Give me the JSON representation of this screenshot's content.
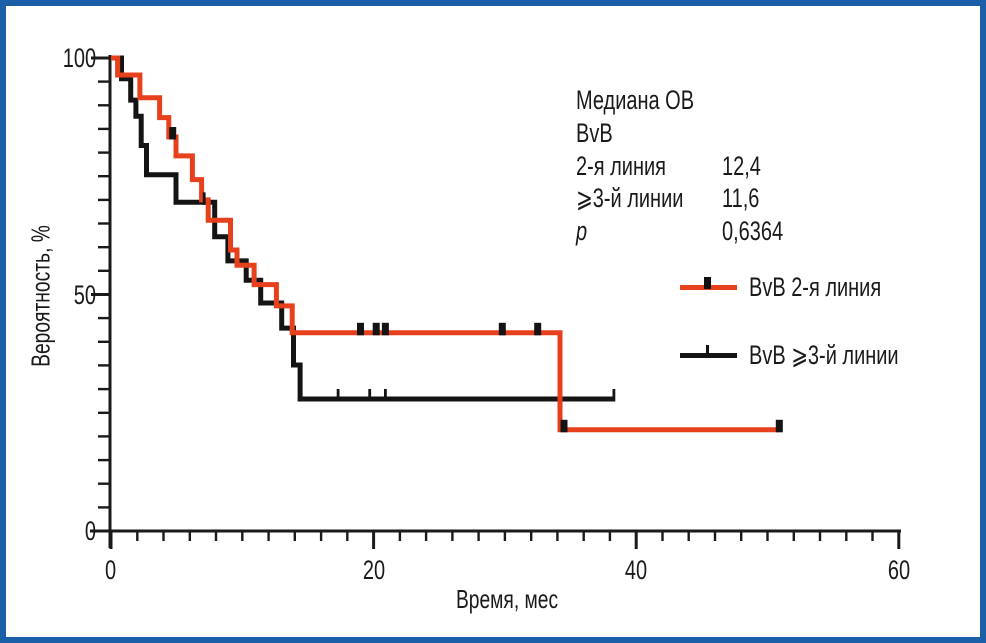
{
  "colors": {
    "frame_blue": "#1b5fa8",
    "curve_red": "#e7401d",
    "curve_black": "#141414",
    "text": "#1a1a1a",
    "background": "#ffffff"
  },
  "stats": {
    "rows": [
      {
        "label": "Медиана ОВ",
        "value": ""
      },
      {
        "label": "BvB",
        "value": ""
      },
      {
        "label": "2-я линия",
        "value": "12,4"
      },
      {
        "label": "⩾3-й линии",
        "value": "11,6"
      },
      {
        "label": "p",
        "value": "0,6364"
      }
    ]
  },
  "legend": {
    "items": [
      {
        "label": "BvB 2-я линия",
        "color": "#e7401d",
        "censor_style": "thick"
      },
      {
        "label": "BvB ⩾3-й линии",
        "color": "#141414",
        "censor_style": "thin"
      }
    ]
  },
  "chart_data": {
    "type": "line",
    "subtype": "kaplan-meier-step",
    "title": "",
    "xlabel": "Время, мес",
    "ylabel": "Вероятность, %",
    "xlim": [
      0,
      60
    ],
    "ylim": [
      0,
      100
    ],
    "grid": false,
    "legend_position": "right-middle",
    "x_axis": {
      "ticks": [
        0,
        20,
        40,
        60
      ],
      "tick_labels": [
        "0",
        "20",
        "40",
        "60"
      ],
      "minor_step": 2
    },
    "y_axis": {
      "ticks": [
        0,
        50,
        100
      ],
      "tick_labels": [
        "0",
        "50",
        "100"
      ],
      "minor_step": 5
    },
    "medians": {
      "BvB 2-я линия": "12,4",
      "BvB ⩾3-й линии": "11,6",
      "p": "0,6364"
    },
    "series": [
      {
        "name": "BvB ⩾3-й линии",
        "color": "#141414",
        "censor_style": "thin",
        "start": [
          0,
          100
        ],
        "steps": [
          [
            0.8,
            95.6
          ],
          [
            1.5,
            91.1
          ],
          [
            1.9,
            87.7
          ],
          [
            2.3,
            81.5
          ],
          [
            2.7,
            75.3
          ],
          [
            4.95,
            69.5
          ],
          [
            7.9,
            62.2
          ],
          [
            8.9,
            57.1
          ],
          [
            10.3,
            53.0
          ],
          [
            11.4,
            48.2
          ],
          [
            13.0,
            42.9
          ],
          [
            13.9,
            35.1
          ],
          [
            14.4,
            27.9
          ]
        ],
        "end": 38.3,
        "censors": [
          [
            7.1,
            69.5
          ],
          [
            17.3,
            27.9
          ],
          [
            19.7,
            27.9
          ],
          [
            20.9,
            27.9
          ],
          [
            38.3,
            27.9
          ]
        ]
      },
      {
        "name": "BvB 2-я линия",
        "color": "#e7401d",
        "censor_style": "thick",
        "start": [
          0,
          100
        ],
        "steps": [
          [
            0.5,
            96.4
          ],
          [
            2.2,
            91.6
          ],
          [
            3.7,
            87.4
          ],
          [
            4.4,
            83.3
          ],
          [
            4.95,
            79.3
          ],
          [
            6.2,
            74.3
          ],
          [
            6.9,
            70.0
          ],
          [
            7.4,
            65.7
          ],
          [
            9.1,
            59.4
          ],
          [
            9.6,
            56.2
          ],
          [
            10.9,
            52.1
          ],
          [
            12.6,
            47.6
          ],
          [
            13.8,
            41.9
          ],
          [
            34.2,
            21.4
          ]
        ],
        "end": 50.9,
        "censors": [
          [
            4.7,
            83.3
          ],
          [
            19.0,
            41.9
          ],
          [
            20.2,
            41.9
          ],
          [
            20.9,
            41.9
          ],
          [
            29.8,
            41.9
          ],
          [
            32.5,
            41.9
          ],
          [
            34.5,
            21.4
          ],
          [
            50.9,
            21.4
          ]
        ]
      }
    ]
  }
}
